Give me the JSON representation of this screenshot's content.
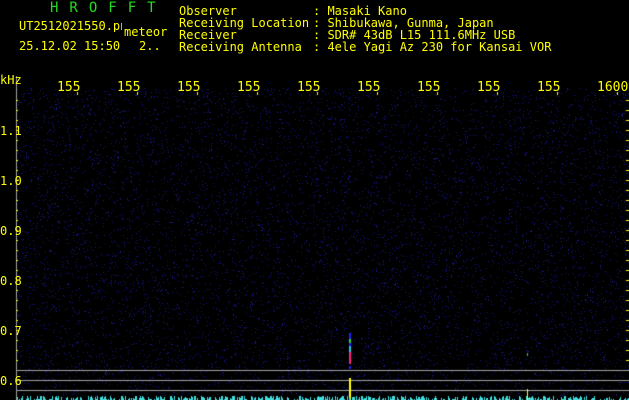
{
  "header": {
    "title": "HROFFT",
    "filename": "UT2512021550.png",
    "mode": "meteor",
    "datetime": "25.12.02 15:50",
    "extra": "2..",
    "info": [
      {
        "label": "Observer",
        "value": ": Masaki Kano"
      },
      {
        "label": "Receiving Location",
        "value": ": Shibukawa, Gunma, Japan"
      },
      {
        "label": "Receiver",
        "value": ": SDR# 43dB L15 111.6MHz USB"
      },
      {
        "label": "Receiving Antenna",
        "value": ": 4ele Yagi Az 230 for Kansai VOR"
      }
    ]
  },
  "axes": {
    "y_unit": "kHz",
    "y_ticks": [
      "1.1",
      "1.0",
      "0.9",
      "0.8",
      "0.7",
      "0.6"
    ],
    "x_ticks": [
      "1551",
      "1552",
      "1553",
      "1554",
      "1555",
      "1556",
      "1557",
      "1558",
      "1559",
      "1600"
    ]
  },
  "colors": {
    "text": "#ffff00",
    "title": "#22dd22",
    "noise": "#1a1a8c",
    "baseline": "#40e0e0",
    "grid": "#a0a0a0"
  }
}
